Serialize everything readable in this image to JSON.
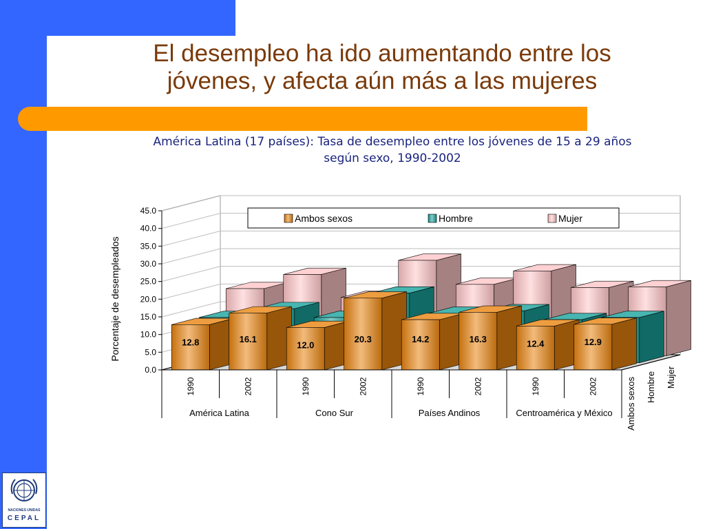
{
  "slide": {
    "title_line1": "El desempleo ha ido aumentando entre los",
    "title_line2": "jóvenes, y afecta aún más a las mujeres",
    "subtitle_line1": "América Latina (17 países): Tasa de desempleo entre los jóvenes de 15 a 29 años",
    "subtitle_line2": "según sexo, 1990-2002"
  },
  "logo": {
    "org_text": "NACIONES UNIDAS",
    "name_text": "CEPAL",
    "icon": "un-emblem-icon"
  },
  "colors": {
    "left_bar": "#3366ff",
    "accent_bar": "#ff9900",
    "title": "#7a3a0a",
    "subtitle": "#1a237e",
    "ambos": "#e88410",
    "hombre": "#1aa39c",
    "mujer": "#ffc6c8"
  },
  "chart_data": {
    "type": "bar",
    "style": "3d-clustered-column",
    "ylabel": "Porcentaje de desempleados",
    "ylim": [
      0,
      45
    ],
    "yticks": [
      "0.0",
      "5.0",
      "10.0",
      "15.0",
      "20.0",
      "25.0",
      "30.0",
      "35.0",
      "40.0",
      "45.0"
    ],
    "grid": true,
    "legend_position": "top",
    "categories": [
      "1990",
      "2002",
      "1990",
      "2002",
      "1990",
      "2002",
      "1990",
      "2002"
    ],
    "groups": [
      {
        "label": "América Latina",
        "categories": [
          "1990",
          "2002"
        ]
      },
      {
        "label": "Cono Sur",
        "categories": [
          "1990",
          "2002"
        ]
      },
      {
        "label": "Países Andinos",
        "categories": [
          "1990",
          "2002"
        ]
      },
      {
        "label": "Centroamérica y México",
        "categories": [
          "1990",
          "2002"
        ]
      }
    ],
    "series": [
      {
        "name": "Ambos sexos",
        "values": [
          12.8,
          16.1,
          12.0,
          20.3,
          14.2,
          16.3,
          12.4,
          12.9
        ],
        "labels": [
          "12.8",
          "16.1",
          "12.0",
          "20.3",
          "14.2",
          "16.3",
          "12.4",
          "12.9"
        ]
      },
      {
        "name": "Hombre",
        "values": [
          12.8,
          15.3,
          12.8,
          19.7,
          14.0,
          14.7,
          12.2,
          12.8
        ]
      },
      {
        "name": "Mujer",
        "values": [
          19.0,
          23.0,
          16.5,
          27.0,
          20.2,
          24.0,
          19.3,
          19.5
        ]
      }
    ],
    "depth_axis_labels": [
      "Ambos sexos",
      "Hombre",
      "Mujer"
    ]
  }
}
